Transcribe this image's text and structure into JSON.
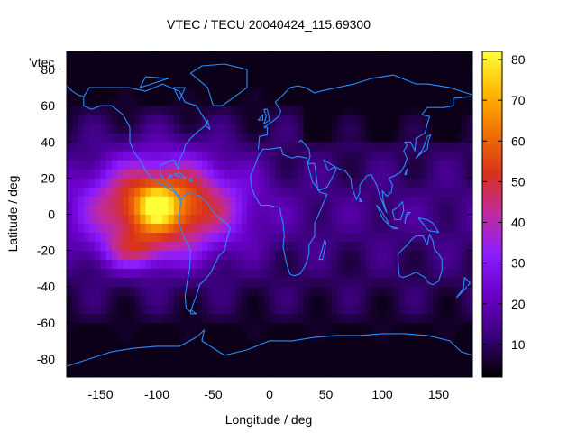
{
  "chart_data": {
    "type": "heatmap",
    "title": "VTEC / TECU 20040424_115.69300",
    "key_label": "'vtec_",
    "xlabel": "Longitude / deg",
    "ylabel": "Latitude / deg",
    "xlim": [
      -180,
      180
    ],
    "ylim": [
      -90,
      90
    ],
    "x_ticks": [
      "-150",
      "-100",
      "-50",
      "0",
      "50",
      "100",
      "150"
    ],
    "x_tick_values": [
      -150,
      -100,
      -50,
      0,
      50,
      100,
      150
    ],
    "y_ticks": [
      "80",
      "60",
      "40",
      "20",
      "0",
      "-20",
      "-40",
      "-60",
      "-80"
    ],
    "y_tick_values": [
      80,
      60,
      40,
      20,
      0,
      -20,
      -40,
      -60,
      -80
    ],
    "colorbar": {
      "range": [
        2,
        82
      ],
      "ticks": [
        "80",
        "70",
        "60",
        "50",
        "40",
        "30",
        "20",
        "10"
      ],
      "tick_values": [
        80,
        70,
        60,
        50,
        40,
        30,
        20,
        10
      ],
      "palette": [
        "#000000",
        "#3a007a",
        "#6a00c8",
        "#8a1cff",
        "#c02aa0",
        "#d8321a",
        "#f07000",
        "#ffb800",
        "#ffff38"
      ]
    },
    "field": {
      "background_tecu": 14,
      "anomaly_peak_tecu": 80,
      "anomaly_center": [
        -95,
        5
      ],
      "anomaly_extent_deg": [
        160,
        65
      ],
      "secondary_peak": [
        -120,
        -20
      ],
      "polar_low_tecu": 4
    }
  }
}
